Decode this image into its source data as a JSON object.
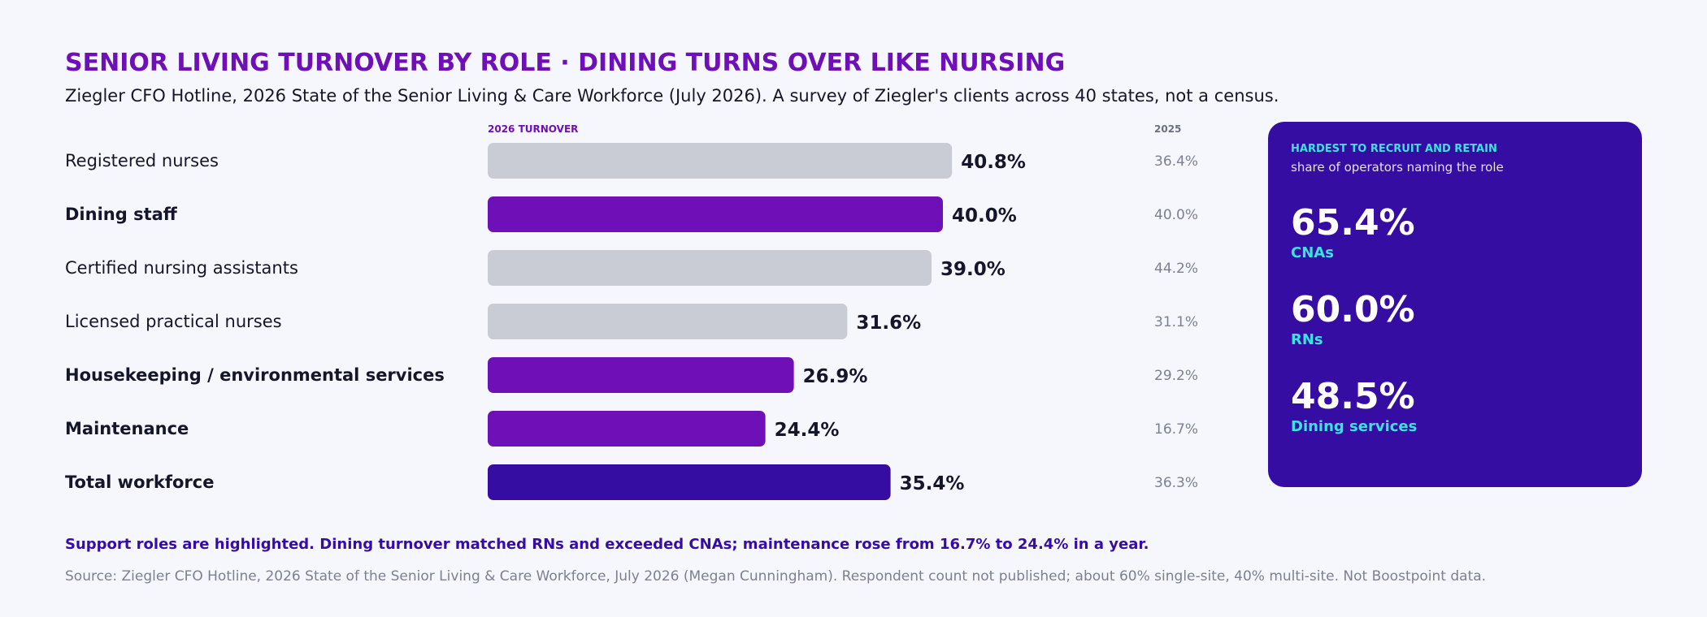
{
  "header": {
    "title": "SENIOR LIVING TURNOVER BY ROLE · DINING TURNS OVER LIKE NURSING",
    "subtitle": "Ziegler CFO Hotline, 2026 State of the Senior Living & Care Workforce (July 2026). A survey of Ziegler's clients across 40 states, not a census."
  },
  "colors": {
    "nursing": "#c9ccd5",
    "support": "#6e0fb7",
    "total": "#360da3",
    "accent": "#3ee1dd"
  },
  "chart_data": {
    "type": "bar",
    "orientation": "horizontal",
    "column_headers": {
      "current": "2026 TURNOVER",
      "previous": "2025"
    },
    "categories": [
      "Registered nurses",
      "Dining staff",
      "Certified nursing assistants",
      "Licensed practical nurses",
      "Housekeeping / environmental services",
      "Maintenance",
      "Total workforce"
    ],
    "groups": [
      "nursing",
      "support",
      "nursing",
      "nursing",
      "support",
      "support",
      "total"
    ],
    "series": [
      {
        "values": [
          40.8,
          40.0,
          39.0,
          31.6,
          26.9,
          24.4,
          35.4
        ],
        "labels": [
          "40.8%",
          "40.0%",
          "39.0%",
          "31.6%",
          "26.9%",
          "24.4%",
          "35.4%"
        ]
      },
      {
        "values": [
          36.4,
          40.0,
          44.2,
          31.1,
          29.2,
          16.7,
          36.3
        ],
        "labels": [
          "36.4%",
          "40.0%",
          "44.2%",
          "31.1%",
          "29.2%",
          "16.7%",
          "36.3%"
        ]
      }
    ],
    "xlim": [
      0,
      50
    ],
    "grid": false,
    "legend": "none"
  },
  "panel": {
    "title": "HARDEST TO RECRUIT AND RETAIN",
    "subtitle": "share of operators naming the role",
    "stats": [
      {
        "value": "65.4%",
        "label": "CNAs"
      },
      {
        "value": "60.0%",
        "label": "RNs"
      },
      {
        "value": "48.5%",
        "label": "Dining services"
      }
    ]
  },
  "footer": {
    "note": "Support roles are highlighted. Dining turnover matched RNs and exceeded CNAs; maintenance rose from 16.7% to 24.4% in a year.",
    "source": "Source: Ziegler CFO Hotline, 2026 State of the Senior Living & Care Workforce, July 2026 (Megan Cunningham). Respondent count not published; about 60% single-site, 40% multi-site. Not Boostpoint data."
  }
}
